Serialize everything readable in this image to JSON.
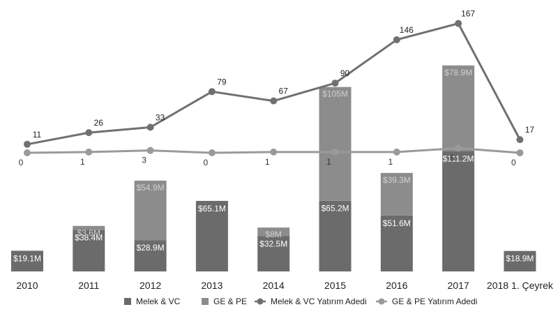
{
  "chart_data": {
    "type": "bar",
    "stacked": true,
    "categories": [
      "2010",
      "2011",
      "2012",
      "2013",
      "2014",
      "2015",
      "2016",
      "2017",
      "2018 1. Çeyrek"
    ],
    "series": [
      {
        "name": "Melek & VC",
        "kind": "bar",
        "color": "#6b6b6b",
        "values": [
          19.1,
          38.4,
          28.9,
          65.1,
          32.5,
          65.2,
          51.6,
          111.2,
          18.9
        ],
        "labels": [
          "$19.1M",
          "$38.4M",
          "$28.9M",
          "$65.1M",
          "$32.5M",
          "$65.2M",
          "$51.6M",
          "$111.2M",
          "$18.9M"
        ]
      },
      {
        "name": "GE & PE",
        "kind": "bar",
        "color": "#8c8c8c",
        "values": [
          0,
          3.6,
          54.9,
          0,
          8,
          105,
          39.3,
          78.9,
          0
        ],
        "labels": [
          "",
          "$3.6M",
          "$54.9M",
          "",
          "$8M",
          "$105M",
          "$39.3M",
          "$78.9M",
          ""
        ]
      },
      {
        "name": "Melek & VC Yatırım Adedi",
        "kind": "line",
        "color": "#707070",
        "values": [
          11,
          26,
          33,
          79,
          67,
          90,
          146,
          167,
          17
        ]
      },
      {
        "name": "GE & PE Yatırım Adedi",
        "kind": "line",
        "color": "#9a9a9a",
        "values": [
          0,
          1,
          3,
          0,
          1,
          1,
          1,
          6,
          0
        ]
      }
    ],
    "legend_position": "bottom",
    "grid": false
  }
}
